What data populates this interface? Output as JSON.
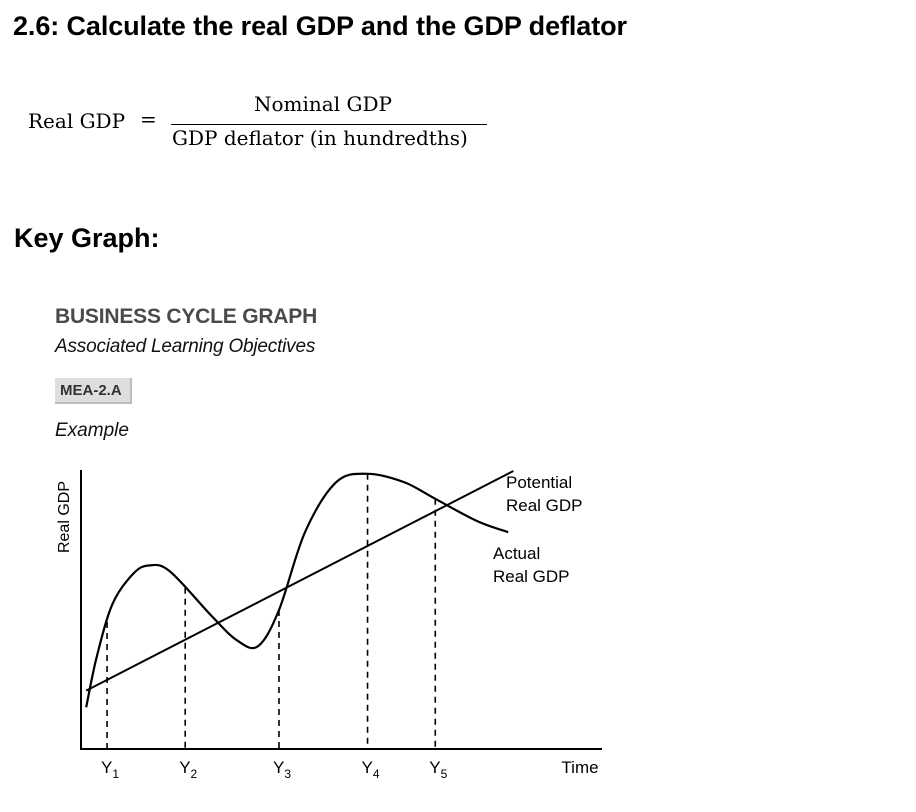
{
  "header": {
    "title": "2.6: Calculate the real GDP and the GDP deflator"
  },
  "formula": {
    "lhs": "Real GDP",
    "equals": "=",
    "numerator": "Nominal GDP",
    "denominator": "GDP deflator (in hundredths)"
  },
  "section": {
    "heading": "Key Graph:"
  },
  "graph_card": {
    "title": "BUSINESS CYCLE GRAPH",
    "subtitle": "Associated Learning Objectives",
    "objective_code": "MEA-2.A",
    "example_label": "Example"
  },
  "chart_data": {
    "type": "line",
    "title": "BUSINESS CYCLE GRAPH",
    "xlabel": "Time",
    "ylabel": "Real GDP",
    "xlim": [
      0,
      10
    ],
    "ylim": [
      0,
      10
    ],
    "grid": false,
    "x_markers": [
      {
        "name": "Y",
        "sub": "1",
        "x": 0.5
      },
      {
        "name": "Y",
        "sub": "2",
        "x": 2.0
      },
      {
        "name": "Y",
        "sub": "3",
        "x": 3.8
      },
      {
        "name": "Y",
        "sub": "4",
        "x": 5.5
      },
      {
        "name": "Y",
        "sub": "5",
        "x": 6.8
      }
    ],
    "series": [
      {
        "name": "Potential Real GDP",
        "label_lines": [
          "Potential",
          "Real GDP"
        ],
        "points": [
          [
            0.1,
            2.1
          ],
          [
            8.3,
            10.0
          ]
        ]
      },
      {
        "name": "Actual Real GDP",
        "label_lines": [
          "Actual",
          "Real GDP"
        ],
        "points": [
          [
            0.1,
            1.5
          ],
          [
            0.3,
            3.3
          ],
          [
            0.6,
            5.2
          ],
          [
            1.0,
            6.3
          ],
          [
            1.3,
            6.6
          ],
          [
            1.7,
            6.4
          ],
          [
            2.5,
            4.8
          ],
          [
            3.0,
            3.9
          ],
          [
            3.4,
            3.7
          ],
          [
            3.8,
            5.0
          ],
          [
            4.3,
            7.8
          ],
          [
            4.9,
            9.6
          ],
          [
            5.5,
            9.9
          ],
          [
            6.2,
            9.6
          ],
          [
            6.8,
            9.0
          ],
          [
            7.6,
            8.2
          ],
          [
            8.2,
            7.8
          ]
        ]
      }
    ]
  }
}
